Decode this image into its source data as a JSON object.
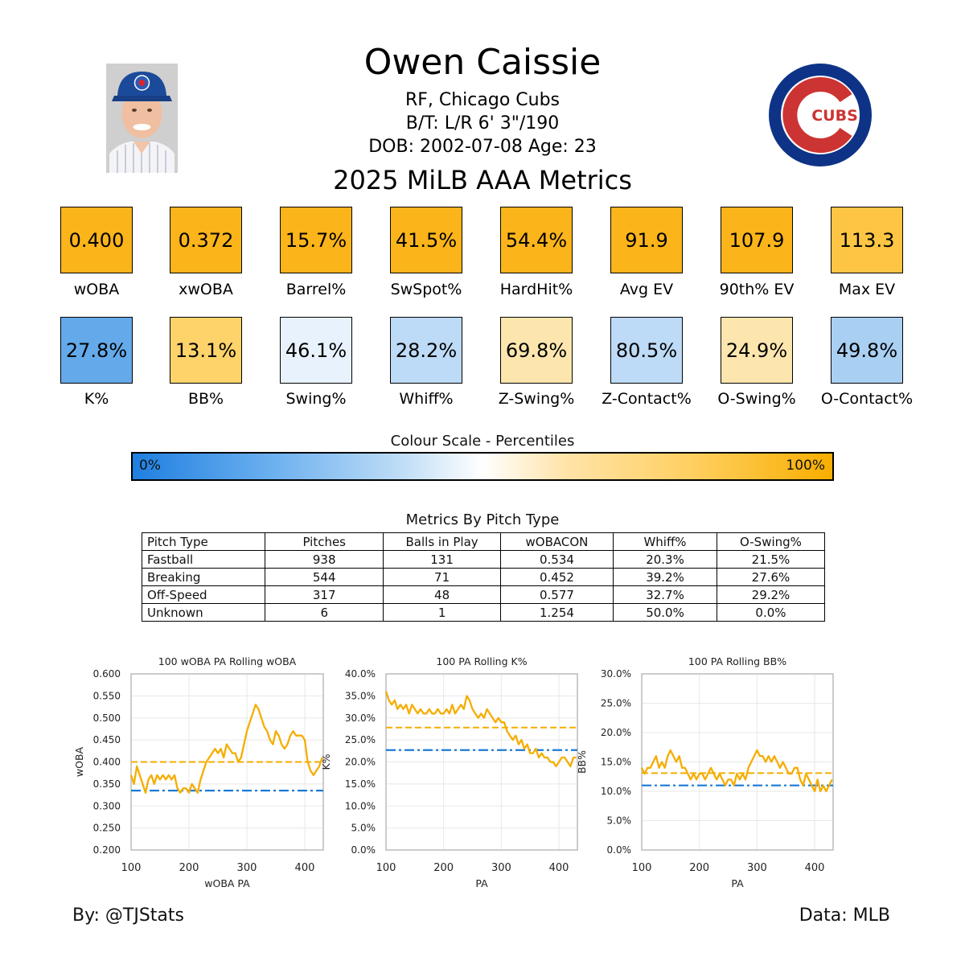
{
  "player": {
    "name": "Owen Caissie",
    "team_line": "RF, Chicago Cubs",
    "bt_line": "B/T: L/R    6' 3\"/190",
    "dob_line": "DOB: 2002-07-08    Age: 23"
  },
  "metrics_title": "2025 MiLB AAA Metrics",
  "tiles_row1": [
    {
      "value": "0.400",
      "label": "wOBA",
      "color": "#fbb41a"
    },
    {
      "value": "0.372",
      "label": "xwOBA",
      "color": "#fbb41a"
    },
    {
      "value": "15.7%",
      "label": "Barrel%",
      "color": "#fbb41a"
    },
    {
      "value": "41.5%",
      "label": "SwSpot%",
      "color": "#fbb41a"
    },
    {
      "value": "54.4%",
      "label": "HardHit%",
      "color": "#fbb41a"
    },
    {
      "value": "91.9",
      "label": "Avg EV",
      "color": "#fbb41a"
    },
    {
      "value": "107.9",
      "label": "90th% EV",
      "color": "#fbb41a"
    },
    {
      "value": "113.3",
      "label": "Max EV",
      "color": "#fdc543"
    }
  ],
  "tiles_row2": [
    {
      "value": "27.8%",
      "label": "K%",
      "color": "#64aaea"
    },
    {
      "value": "13.1%",
      "label": "BB%",
      "color": "#fdd36a"
    },
    {
      "value": "46.1%",
      "label": "Swing%",
      "color": "#e8f2fc"
    },
    {
      "value": "28.2%",
      "label": "Whiff%",
      "color": "#bddaf6"
    },
    {
      "value": "69.8%",
      "label": "Z-Swing%",
      "color": "#fde6ae"
    },
    {
      "value": "80.5%",
      "label": "Z-Contact%",
      "color": "#bddaf6"
    },
    {
      "value": "24.9%",
      "label": "O-Swing%",
      "color": "#fde6ae"
    },
    {
      "value": "49.8%",
      "label": "O-Contact%",
      "color": "#a9cff2"
    }
  ],
  "colour_scale": {
    "title": "Colour Scale - Percentiles",
    "min_label": "0%",
    "max_label": "100%"
  },
  "pitch_table": {
    "title": "Metrics By Pitch Type",
    "headers": [
      "Pitch Type",
      "Pitches",
      "Balls in Play",
      "wOBACON",
      "Whiff%",
      "O-Swing%"
    ],
    "rows": [
      [
        "Fastball",
        "938",
        "131",
        "0.534",
        "20.3%",
        "21.5%"
      ],
      [
        "Breaking",
        "544",
        "71",
        "0.452",
        "39.2%",
        "27.6%"
      ],
      [
        "Off-Speed",
        "317",
        "48",
        "0.577",
        "32.7%",
        "29.2%"
      ],
      [
        "Unknown",
        "6",
        "1",
        "1.254",
        "50.0%",
        "0.0%"
      ]
    ]
  },
  "logo": {
    "text": "CUBS",
    "blue": "#0e3386",
    "red": "#cc3433"
  },
  "chart_data": [
    {
      "type": "line",
      "title": "100 wOBA PA Rolling wOBA",
      "xlabel": "wOBA PA",
      "ylabel": "wOBA",
      "xlim": [
        100,
        432
      ],
      "ylim": [
        0.2,
        0.6
      ],
      "xticks": [
        100,
        200,
        300,
        400
      ],
      "xtick_labels": [
        "100",
        "200",
        "300",
        "400"
      ],
      "yticks": [
        0.2,
        0.25,
        0.3,
        0.35,
        0.4,
        0.45,
        0.5,
        0.55,
        0.6
      ],
      "ytick_labels": [
        "0.200",
        "0.250",
        "0.300",
        "0.350",
        "0.400",
        "0.450",
        "0.500",
        "0.550",
        "0.600"
      ],
      "player_avg": 0.4,
      "league_avg": 0.335,
      "x": [
        100,
        105,
        110,
        115,
        120,
        125,
        130,
        135,
        140,
        145,
        150,
        155,
        160,
        165,
        170,
        175,
        180,
        185,
        190,
        195,
        200,
        205,
        210,
        215,
        220,
        225,
        230,
        235,
        240,
        245,
        250,
        255,
        260,
        265,
        270,
        275,
        280,
        285,
        290,
        295,
        300,
        305,
        310,
        315,
        320,
        325,
        330,
        335,
        340,
        345,
        350,
        355,
        360,
        365,
        370,
        375,
        380,
        385,
        390,
        395,
        400,
        405,
        410,
        415,
        420,
        425,
        430
      ],
      "y": [
        0.37,
        0.35,
        0.39,
        0.37,
        0.35,
        0.33,
        0.36,
        0.37,
        0.35,
        0.37,
        0.36,
        0.37,
        0.36,
        0.37,
        0.36,
        0.37,
        0.34,
        0.33,
        0.34,
        0.34,
        0.33,
        0.35,
        0.34,
        0.33,
        0.36,
        0.38,
        0.4,
        0.41,
        0.42,
        0.43,
        0.42,
        0.43,
        0.41,
        0.44,
        0.43,
        0.42,
        0.42,
        0.4,
        0.41,
        0.44,
        0.47,
        0.49,
        0.51,
        0.53,
        0.52,
        0.5,
        0.48,
        0.47,
        0.45,
        0.44,
        0.47,
        0.46,
        0.44,
        0.43,
        0.44,
        0.46,
        0.47,
        0.46,
        0.46,
        0.46,
        0.45,
        0.4,
        0.38,
        0.37,
        0.38,
        0.39,
        0.41
      ]
    },
    {
      "type": "line",
      "title": "100 PA Rolling K%",
      "xlabel": "PA",
      "ylabel": "K%",
      "xlim": [
        100,
        432
      ],
      "ylim": [
        0,
        40
      ],
      "xticks": [
        100,
        200,
        300,
        400
      ],
      "xtick_labels": [
        "100",
        "200",
        "300",
        "400"
      ],
      "yticks": [
        0,
        5,
        10,
        15,
        20,
        25,
        30,
        35,
        40
      ],
      "ytick_labels": [
        "0.0%",
        "5.0%",
        "10.0%",
        "15.0%",
        "20.0%",
        "25.0%",
        "30.0%",
        "35.0%",
        "40.0%"
      ],
      "player_avg": 27.8,
      "league_avg": 22.7,
      "x": [
        100,
        105,
        110,
        115,
        120,
        125,
        130,
        135,
        140,
        145,
        150,
        155,
        160,
        165,
        170,
        175,
        180,
        185,
        190,
        195,
        200,
        205,
        210,
        215,
        220,
        225,
        230,
        235,
        240,
        245,
        250,
        255,
        260,
        265,
        270,
        275,
        280,
        285,
        290,
        295,
        300,
        305,
        310,
        315,
        320,
        325,
        330,
        335,
        340,
        345,
        350,
        355,
        360,
        365,
        370,
        375,
        380,
        385,
        390,
        395,
        400,
        405,
        410,
        415,
        420,
        425,
        430
      ],
      "y": [
        36,
        34,
        33,
        34,
        32,
        33,
        32,
        33,
        31,
        33,
        32,
        31,
        32,
        31,
        31,
        32,
        31,
        31,
        32,
        31,
        31,
        32,
        31,
        33,
        31,
        32,
        33,
        32,
        35,
        34,
        32,
        31,
        30,
        31,
        30,
        32,
        31,
        30,
        29,
        30,
        29,
        29,
        27,
        26,
        25,
        26,
        24,
        25,
        23,
        24,
        22,
        22,
        23,
        21,
        22,
        21,
        21,
        20,
        20,
        19,
        20,
        21,
        21,
        20,
        19,
        21,
        21
      ]
    },
    {
      "type": "line",
      "title": "100 PA Rolling BB%",
      "xlabel": "PA",
      "ylabel": "BB%",
      "xlim": [
        100,
        432
      ],
      "ylim": [
        0,
        30
      ],
      "xticks": [
        100,
        200,
        300,
        400
      ],
      "xtick_labels": [
        "100",
        "200",
        "300",
        "400"
      ],
      "yticks": [
        0,
        5,
        10,
        15,
        20,
        25,
        30
      ],
      "ytick_labels": [
        "0.0%",
        "5.0%",
        "10.0%",
        "15.0%",
        "20.0%",
        "25.0%",
        "30.0%"
      ],
      "player_avg": 13.1,
      "league_avg": 11.0,
      "x": [
        100,
        105,
        110,
        115,
        120,
        125,
        130,
        135,
        140,
        145,
        150,
        155,
        160,
        165,
        170,
        175,
        180,
        185,
        190,
        195,
        200,
        205,
        210,
        215,
        220,
        225,
        230,
        235,
        240,
        245,
        250,
        255,
        260,
        265,
        270,
        275,
        280,
        285,
        290,
        295,
        300,
        305,
        310,
        315,
        320,
        325,
        330,
        335,
        340,
        345,
        350,
        355,
        360,
        365,
        370,
        375,
        380,
        385,
        390,
        395,
        400,
        405,
        410,
        415,
        420,
        425,
        430
      ],
      "y": [
        14,
        13,
        14,
        14,
        15,
        16,
        14,
        15,
        14,
        16,
        17,
        16,
        15,
        16,
        14,
        14,
        13,
        12,
        13,
        12,
        13,
        13,
        12,
        13,
        14,
        13,
        12,
        13,
        12,
        11,
        12,
        12,
        11,
        13,
        12,
        13,
        12,
        14,
        15,
        16,
        17,
        16,
        16,
        15,
        16,
        15,
        16,
        15,
        14,
        15,
        14,
        13,
        13,
        14,
        14,
        12,
        11,
        13,
        12,
        11,
        10,
        12,
        10,
        11,
        10,
        11,
        12
      ]
    }
  ],
  "footer": {
    "left": "By: @TJStats",
    "right": "Data: MLB"
  },
  "colors": {
    "accent": "#f5ad00",
    "league_line": "#1a7ad6",
    "grid": "#e8e8e8",
    "frame": "#bbbbbb"
  }
}
